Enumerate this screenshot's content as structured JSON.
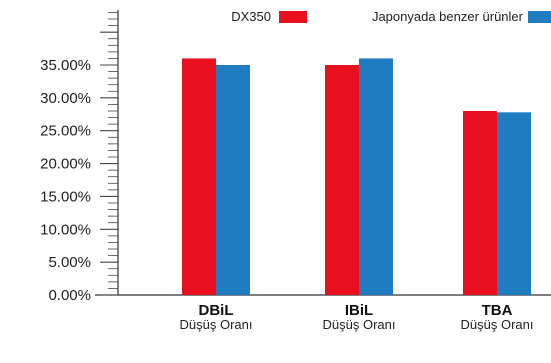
{
  "chart_data": {
    "type": "bar",
    "categories": [
      "DBiL",
      "IBiL",
      "TBA"
    ],
    "category_sublabels": [
      "Düşüş Oranı",
      "Düşüş Oranı",
      "Düşüş Oranı"
    ],
    "series": [
      {
        "name": "DX350",
        "color": "#e8101e",
        "values": [
          36.0,
          35.0,
          28.0
        ]
      },
      {
        "name": "Japonyada benzer ürünler",
        "color": "#1f7cc1",
        "values": [
          35.0,
          36.0,
          27.8
        ]
      }
    ],
    "ylim": [
      0,
      40
    ],
    "yticks": [
      "0.00%",
      "5.00%",
      "10.00%",
      "15.00%",
      "20.00%",
      "25.00%",
      "30.00%",
      "35.00%"
    ],
    "ytick_values": [
      0,
      5,
      10,
      15,
      20,
      25,
      30,
      35
    ],
    "legend_position": "top-right",
    "grid": false
  }
}
